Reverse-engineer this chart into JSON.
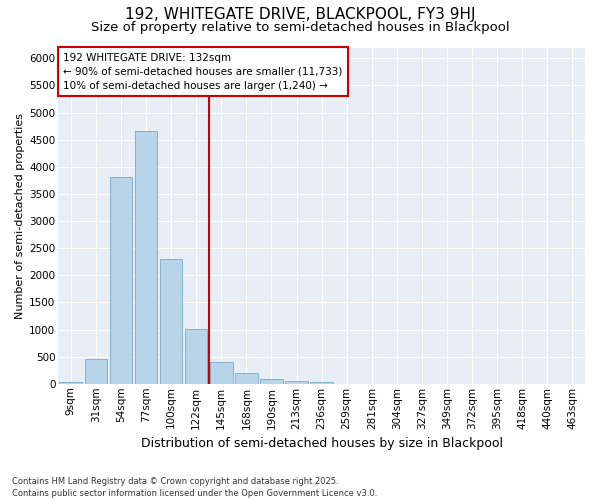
{
  "title": "192, WHITEGATE DRIVE, BLACKPOOL, FY3 9HJ",
  "subtitle": "Size of property relative to semi-detached houses in Blackpool",
  "xlabel": "Distribution of semi-detached houses by size in Blackpool",
  "ylabel": "Number of semi-detached properties",
  "footnote": "Contains HM Land Registry data © Crown copyright and database right 2025.\nContains public sector information licensed under the Open Government Licence v3.0.",
  "categories": [
    "9sqm",
    "31sqm",
    "54sqm",
    "77sqm",
    "100sqm",
    "122sqm",
    "145sqm",
    "168sqm",
    "190sqm",
    "213sqm",
    "236sqm",
    "259sqm",
    "281sqm",
    "304sqm",
    "327sqm",
    "349sqm",
    "372sqm",
    "395sqm",
    "418sqm",
    "440sqm",
    "463sqm"
  ],
  "values": [
    25,
    460,
    3820,
    4660,
    2300,
    1010,
    400,
    195,
    80,
    55,
    40,
    0,
    0,
    0,
    0,
    0,
    0,
    0,
    0,
    0,
    0
  ],
  "bar_color": "#b8d4e8",
  "bar_edge_color": "#7aaac8",
  "property_line_x": 5.5,
  "property_label": "192 WHITEGATE DRIVE: 132sqm",
  "arrow_left_label": "← 90% of semi-detached houses are smaller (11,733)",
  "arrow_right_label": "10% of semi-detached houses are larger (1,240) →",
  "property_line_color": "#cc0000",
  "ylim": [
    0,
    6200
  ],
  "yticks": [
    0,
    500,
    1000,
    1500,
    2000,
    2500,
    3000,
    3500,
    4000,
    4500,
    5000,
    5500,
    6000
  ],
  "bg_color": "#ffffff",
  "plot_bg_color": "#e8eef5",
  "title_fontsize": 11,
  "subtitle_fontsize": 9.5,
  "xlabel_fontsize": 9,
  "ylabel_fontsize": 8,
  "tick_fontsize": 7.5,
  "annot_fontsize": 7.5,
  "footnote_fontsize": 6
}
